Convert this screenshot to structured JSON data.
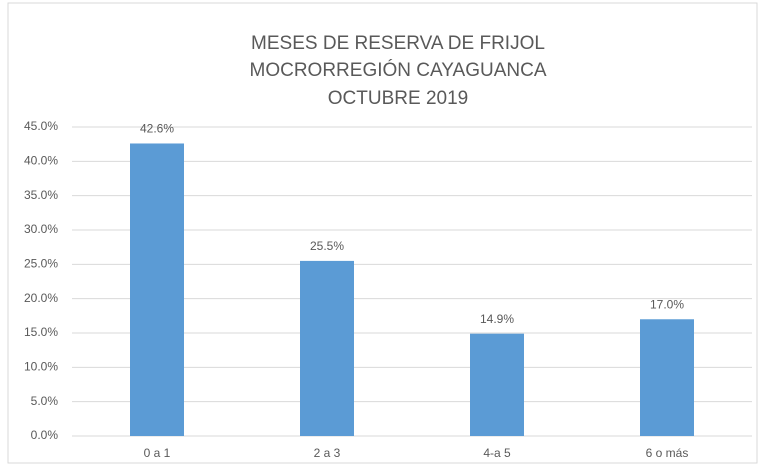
{
  "chart_data": {
    "type": "bar",
    "title": [
      "MESES DE RESERVA DE FRIJOL",
      "MOCRORREGIÓN CAYAGUANCA",
      "OCTUBRE 2019"
    ],
    "categories": [
      "0 a 1",
      "2 a 3",
      "4-a 5",
      "6 o más"
    ],
    "values": [
      42.6,
      25.5,
      14.9,
      17.0
    ],
    "value_labels": [
      "42.6%",
      "25.5%",
      "14.9%",
      "17.0%"
    ],
    "color": "#5b9bd5",
    "ylim": [
      0,
      45
    ],
    "yticks": [
      {
        "value": 0,
        "label": "0.0%"
      },
      {
        "value": 5,
        "label": "5.0%"
      },
      {
        "value": 10,
        "label": "10.0%"
      },
      {
        "value": 15,
        "label": "15.0%"
      },
      {
        "value": 20,
        "label": "20.0%"
      },
      {
        "value": 25,
        "label": "25.0%"
      },
      {
        "value": 30,
        "label": "30.0%"
      },
      {
        "value": 35,
        "label": "35.0%"
      },
      {
        "value": 40,
        "label": "40.0%"
      },
      {
        "value": 45,
        "label": "45.0%"
      }
    ],
    "grid": true
  }
}
